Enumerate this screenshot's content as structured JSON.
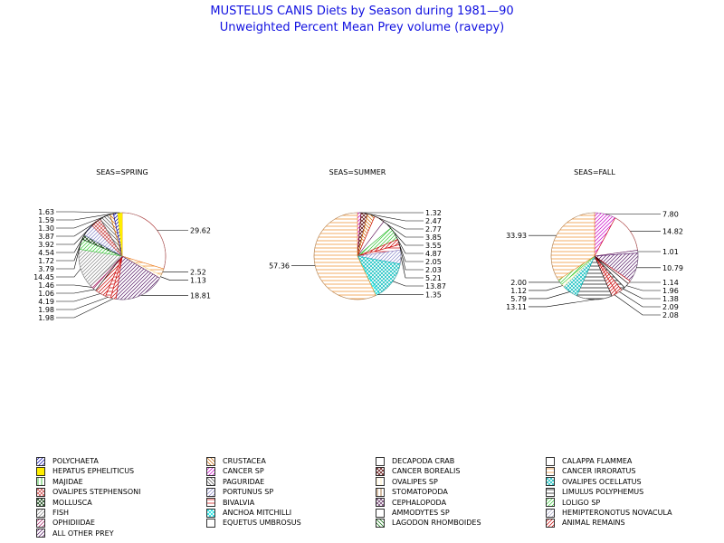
{
  "title": "MUSTELUS CANIS Diets by Season during 1981—90",
  "subtitle": "Unweighted Percent Mean Prey volume (ravepy)",
  "chart_data": {
    "type": "pie",
    "categories": [
      {
        "name": "POLYCHAETA",
        "color": "#0000aa",
        "pattern": "diag-right"
      },
      {
        "name": "CRUSTACEA",
        "color": "#cc6600",
        "pattern": "diag-left"
      },
      {
        "name": "DECAPODA CRAB",
        "color": "#cc0000",
        "pattern": "empty"
      },
      {
        "name": "CALAPPA FLAMMEA",
        "color": "#551a66",
        "pattern": "empty"
      },
      {
        "name": "HEPATUS EPHELITICUS",
        "color": "#ffee00",
        "pattern": "solid"
      },
      {
        "name": "CANCER SP",
        "color": "#cc00cc",
        "pattern": "diag-right"
      },
      {
        "name": "CANCER BOREALIS",
        "color": "#550000",
        "pattern": "cross"
      },
      {
        "name": "CANCER IRRORATUS",
        "color": "#ee8822",
        "pattern": "horiz"
      },
      {
        "name": "MAJIDAE",
        "color": "#00aa00",
        "pattern": "vert"
      },
      {
        "name": "PAGURIDAE",
        "color": "#555555",
        "pattern": "diag-left"
      },
      {
        "name": "OVALIPES SP",
        "color": "#ffe8aa",
        "pattern": "vert"
      },
      {
        "name": "OVALIPES OCELLATUS",
        "color": "#00bbbb",
        "pattern": "cross"
      },
      {
        "name": "OVALIPES STEPHENSONI",
        "color": "#cc4444",
        "pattern": "cross"
      },
      {
        "name": "PORTUNUS SP",
        "color": "#8888cc",
        "pattern": "diag-right"
      },
      {
        "name": "STOMATOPODA",
        "color": "#884400",
        "pattern": "vert"
      },
      {
        "name": "LIMULUS POLYPHEMUS",
        "color": "#000000",
        "pattern": "horiz"
      },
      {
        "name": "MOLLUSCA",
        "color": "#003300",
        "pattern": "cross"
      },
      {
        "name": "BIVALVIA",
        "color": "#cc0000",
        "pattern": "horiz"
      },
      {
        "name": "CEPHALOPODA",
        "color": "#663366",
        "pattern": "cross"
      },
      {
        "name": "LOLIGO SP",
        "color": "#33cc33",
        "pattern": "diag-right"
      },
      {
        "name": "FISH",
        "color": "#888888",
        "pattern": "diag-right"
      },
      {
        "name": "ANCHOA MITCHILLI",
        "color": "#00dddd",
        "pattern": "cross"
      },
      {
        "name": "AMMODYTES SP",
        "color": "#cc33cc",
        "pattern": "empty"
      },
      {
        "name": "HEMIPTERONOTUS NOVACULA",
        "color": "#aaaacc",
        "pattern": "diag-right"
      },
      {
        "name": "OPHIDIIDAE",
        "color": "#aa2266",
        "pattern": "diag-right"
      },
      {
        "name": "EQUETUS UMBROSUS",
        "color": "#000000",
        "pattern": "empty"
      },
      {
        "name": "LAGODON RHOMBOIDES",
        "color": "#006600",
        "pattern": "diag-left"
      },
      {
        "name": "ANIMAL REMAINS",
        "color": "#cc0000",
        "pattern": "diag-right"
      },
      {
        "name": "ALL OTHER PREY",
        "color": "#551a66",
        "pattern": "diag-right"
      }
    ],
    "pies": [
      {
        "title": "SEAS=SPRING",
        "slices": [
          {
            "category": "DECAPODA CRAB",
            "value": 29.62
          },
          {
            "category": "CANCER IRRORATUS",
            "value": 2.52
          },
          {
            "category": "OVALIPES SP",
            "value": 1.13
          },
          {
            "category": "ALL OTHER PREY",
            "value": 18.81
          },
          {
            "category": "ANIMAL REMAINS",
            "value": 1.98
          },
          {
            "category": "BIVALVIA",
            "value": 1.98
          },
          {
            "category": "ANIMAL REMAINS",
            "value": 4.19
          },
          {
            "category": "EQUETUS UMBROSUS",
            "value": 1.06
          },
          {
            "category": "OPHIDIIDAE",
            "value": 1.46
          },
          {
            "category": "FISH",
            "value": 14.45
          },
          {
            "category": "LOLIGO SP",
            "value": 3.79
          },
          {
            "category": "MOLLUSCA",
            "value": 1.72
          },
          {
            "category": "PORTUNUS SP",
            "value": 4.54
          },
          {
            "category": "OVALIPES STEPHENSONI",
            "value": 3.92
          },
          {
            "category": "PAGURIDAE",
            "value": 3.87
          },
          {
            "category": "CRUSTACEA",
            "value": 1.3
          },
          {
            "category": "POLYCHAETA",
            "value": 1.59
          },
          {
            "category": "HEPATUS EPHELITICUS",
            "value": 1.63
          }
        ]
      },
      {
        "title": "SEAS=SUMMER",
        "slices": [
          {
            "category": "CANCER SP",
            "value": 1.32
          },
          {
            "category": "CANCER BOREALIS",
            "value": 2.47
          },
          {
            "category": "CRUSTACEA",
            "value": 2.77
          },
          {
            "category": "DECAPODA CRAB",
            "value": 3.85
          },
          {
            "category": "CALAPPA FLAMMEA",
            "value": 3.55
          },
          {
            "category": "LOLIGO SP",
            "value": 4.87
          },
          {
            "category": "ANIMAL REMAINS",
            "value": 2.05
          },
          {
            "category": "BIVALVIA",
            "value": 2.03
          },
          {
            "category": "PORTUNUS SP",
            "value": 5.21
          },
          {
            "category": "OVALIPES OCELLATUS",
            "value": 13.87
          },
          {
            "category": "ANCHOA MITCHILLI",
            "value": 1.35
          },
          {
            "category": "CANCER IRRORATUS",
            "value": 57.36
          }
        ]
      },
      {
        "title": "SEAS=FALL",
        "slices": [
          {
            "category": "CANCER SP",
            "value": 7.8
          },
          {
            "category": "DECAPODA CRAB",
            "value": 14.82
          },
          {
            "category": "CALAPPA FLAMMEA",
            "value": 1.01
          },
          {
            "category": "ALL OTHER PREY",
            "value": 10.79
          },
          {
            "category": "DECAPODA CRAB",
            "value": 1.14
          },
          {
            "category": "EQUETUS UMBROSUS",
            "value": 1.96
          },
          {
            "category": "LIMULUS POLYPHEMUS",
            "value": 1.38
          },
          {
            "category": "ANIMAL REMAINS",
            "value": 2.09
          },
          {
            "category": "ANIMAL REMAINS",
            "value": 2.08
          },
          {
            "category": "LIMULUS POLYPHEMUS",
            "value": 13.11
          },
          {
            "category": "OVALIPES OCELLATUS",
            "value": 5.79
          },
          {
            "category": "OVALIPES SP",
            "value": 1.12
          },
          {
            "category": "LOLIGO SP",
            "value": 2.0
          },
          {
            "category": "CANCER IRRORATUS",
            "value": 33.93
          }
        ]
      }
    ],
    "legend": {
      "position": "bottom",
      "items": [
        "POLYCHAETA",
        "CRUSTACEA",
        "DECAPODA CRAB",
        "CALAPPA FLAMMEA",
        "HEPATUS EPHELITICUS",
        "CANCER SP",
        "CANCER BOREALIS",
        "CANCER IRRORATUS",
        "MAJIDAE",
        "PAGURIDAE",
        "OVALIPES SP",
        "OVALIPES OCELLATUS",
        "OVALIPES STEPHENSONI",
        "PORTUNUS SP",
        "STOMATOPODA",
        "LIMULUS POLYPHEMUS",
        "MOLLUSCA",
        "BIVALVIA",
        "CEPHALOPODA",
        "LOLIGO SP",
        "FISH",
        "ANCHOA MITCHILLI",
        "AMMODYTES SP",
        "HEMIPTERONOTUS NOVACULA",
        "OPHIDIIDAE",
        "EQUETUS UMBROSUS",
        "LAGODON RHOMBOIDES",
        "ANIMAL REMAINS",
        "ALL OTHER PREY"
      ]
    }
  }
}
